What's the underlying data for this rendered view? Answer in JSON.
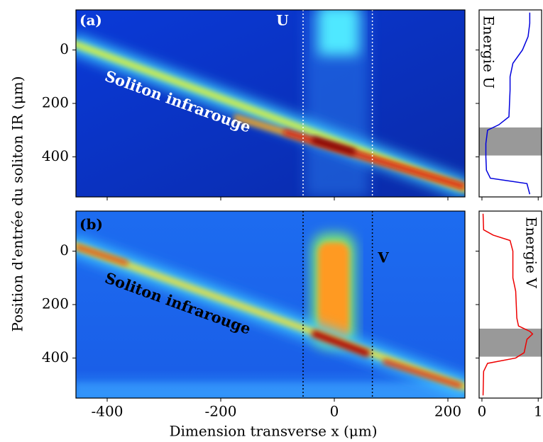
{
  "xlabel": "Dimension transverse x (μm)",
  "ylabel": "Position d'entrée du soliton IR (μm)",
  "chart_data": [
    {
      "type": "heatmap",
      "label": "(a)",
      "annotations": [
        "U",
        "Soliton infrarouge"
      ],
      "annotation_color": "#ffffff",
      "xlim": [
        -455,
        230
      ],
      "ylim": [
        550,
        -150
      ],
      "xticks": [
        -400,
        -200,
        0,
        200
      ],
      "yticks": [
        0,
        200,
        400
      ],
      "xtick_labels": false,
      "markers_x": [
        -55,
        67
      ]
    },
    {
      "type": "line",
      "series": [
        {
          "name": "Energie U",
          "color": "#0000dd",
          "values": [
            0.85,
            0.85,
            0.82,
            0.72,
            0.55,
            0.5,
            0.5,
            0.48,
            0.3,
            0.1,
            0.07,
            0.07,
            0.08,
            0.15,
            0.8,
            0.85
          ],
          "y": [
            -140,
            -100,
            -50,
            0,
            50,
            100,
            150,
            250,
            280,
            300,
            350,
            400,
            450,
            480,
            500,
            540
          ]
        }
      ],
      "xlim": [
        -0.05,
        1.06
      ],
      "ylim": [
        550,
        -150
      ],
      "xticks": [
        0,
        1
      ],
      "yticks": [
        0,
        200,
        400
      ],
      "xtick_labels": false,
      "shaded_range": [
        290,
        395
      ]
    },
    {
      "type": "heatmap",
      "label": "(b)",
      "annotations": [
        "V",
        "Soliton infrarouge"
      ],
      "annotation_color": "#000000",
      "xlim": [
        -455,
        230
      ],
      "ylim": [
        550,
        -150
      ],
      "xticks": [
        -400,
        -200,
        0,
        200
      ],
      "yticks": [
        0,
        200,
        400
      ],
      "xtick_labels": true,
      "markers_x": [
        -55,
        67
      ]
    },
    {
      "type": "line",
      "series": [
        {
          "name": "Energie V",
          "color": "#ee0000",
          "values": [
            0.02,
            0.03,
            0.2,
            0.5,
            0.55,
            0.55,
            0.6,
            0.62,
            0.65,
            0.85,
            0.9,
            0.8,
            0.75,
            0.6,
            0.1,
            0.03,
            0.02
          ],
          "y": [
            -140,
            -80,
            -60,
            -40,
            0,
            100,
            150,
            250,
            280,
            300,
            310,
            330,
            380,
            400,
            420,
            450,
            540
          ]
        }
      ],
      "xlim": [
        -0.05,
        1.06
      ],
      "ylim": [
        550,
        -150
      ],
      "xticks": [
        0,
        1
      ],
      "yticks": [
        0,
        200,
        400
      ],
      "xtick_labels": true,
      "shaded_range": [
        290,
        395
      ]
    }
  ]
}
